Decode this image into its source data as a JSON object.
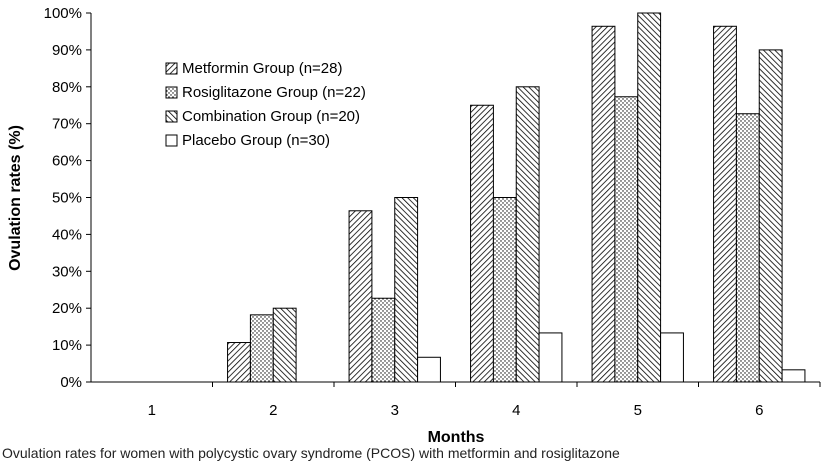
{
  "chart_data": {
    "type": "bar",
    "xlabel": "Months",
    "ylabel": "Ovulation rates (%)",
    "ylim": [
      0,
      100
    ],
    "yticks": [
      "0%",
      "10%",
      "20%",
      "30%",
      "40%",
      "50%",
      "60%",
      "70%",
      "80%",
      "90%",
      "100%"
    ],
    "categories": [
      "1",
      "2",
      "3",
      "4",
      "5",
      "6"
    ],
    "grid": false,
    "legend_position": "upper-left",
    "series": [
      {
        "name": "Metformin Group (n=28)",
        "pattern": "diagonal-hatch",
        "values": [
          0,
          10.7,
          46.4,
          75.0,
          96.4,
          96.4
        ]
      },
      {
        "name": "Rosiglitazone Group (n=22)",
        "pattern": "dotted",
        "values": [
          0,
          18.2,
          22.7,
          50.0,
          77.3,
          72.7
        ]
      },
      {
        "name": "Combination Group (n=20)",
        "pattern": "reverse-diagonal-hatch",
        "values": [
          0,
          20.0,
          50.0,
          80.0,
          100.0,
          90.0
        ]
      },
      {
        "name": "Placebo Group (n=30)",
        "pattern": "solid-white",
        "values": [
          0,
          0,
          6.7,
          13.3,
          13.3,
          3.3
        ]
      }
    ]
  },
  "caption": "Ovulation rates for women with polycystic ovary syndrome (PCOS) with metformin and rosiglitazone"
}
